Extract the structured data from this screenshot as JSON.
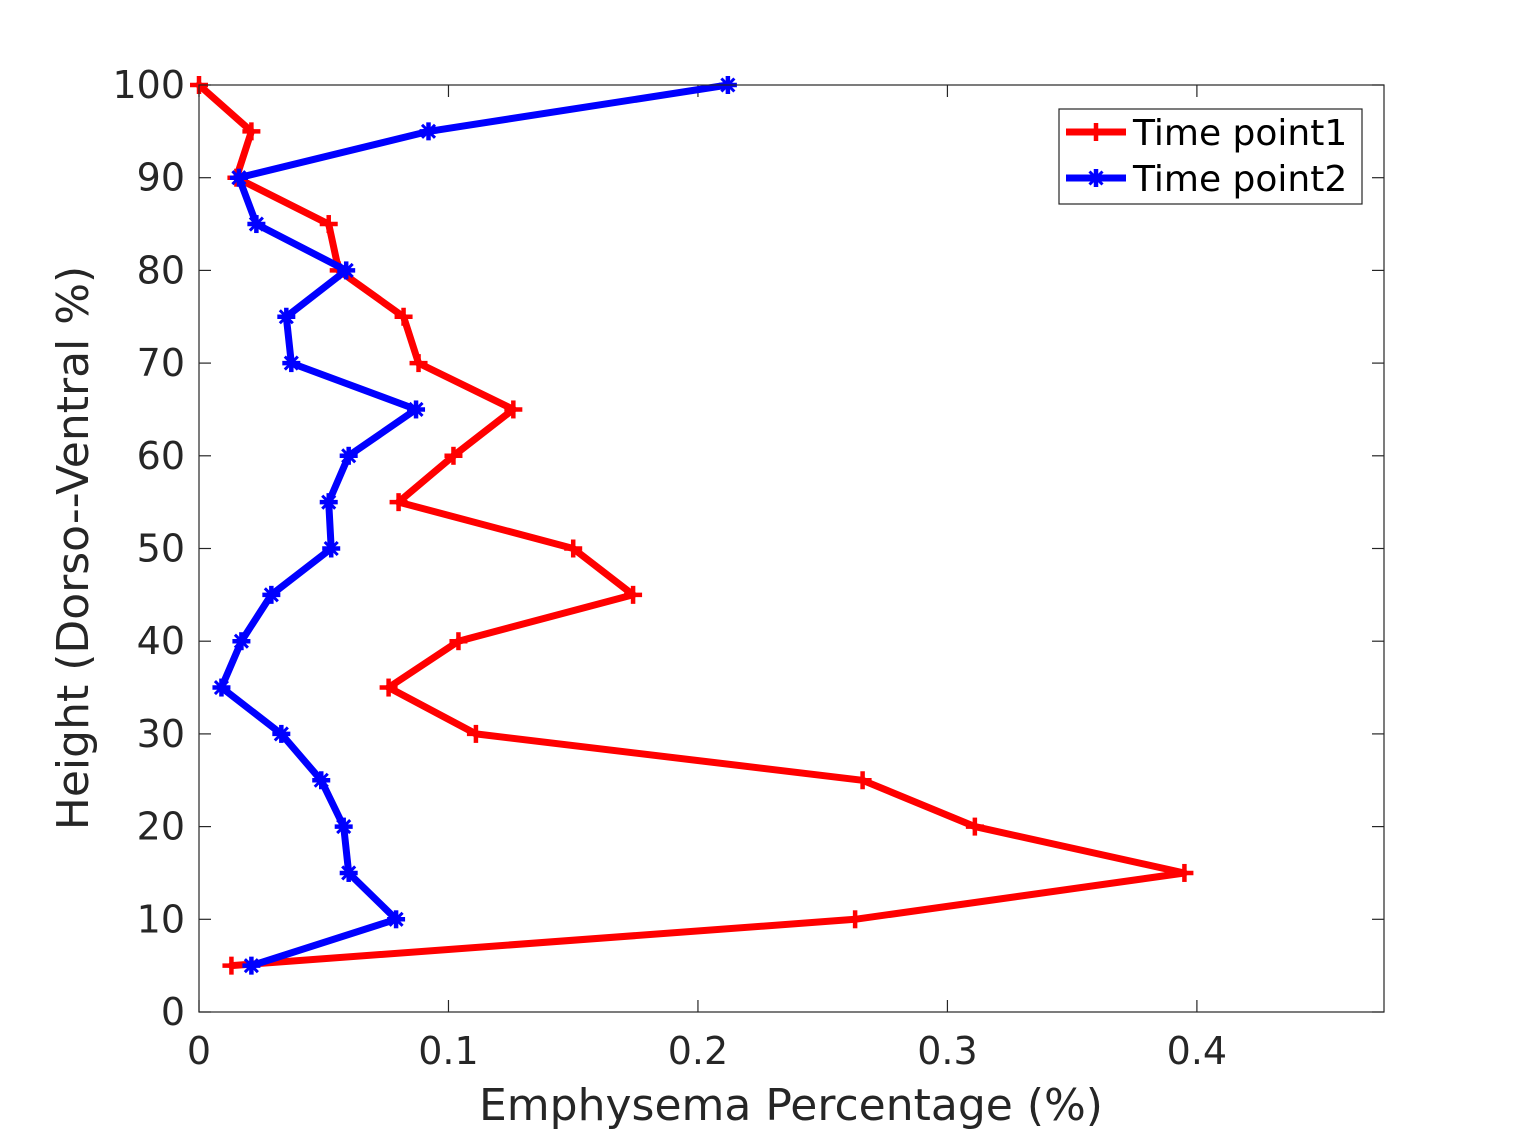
{
  "chart_data": {
    "type": "line",
    "xlabel": "Emphysema Percentage (%)",
    "ylabel": "Height (Dorso--Ventral %)",
    "xlim": [
      0,
      0.475
    ],
    "ylim": [
      0,
      100
    ],
    "x_ticks": [
      0,
      0.1,
      0.2,
      0.3,
      0.4
    ],
    "x_tick_labels": [
      "0",
      "0.1",
      "0.2",
      "0.3",
      "0.4"
    ],
    "y_ticks": [
      0,
      10,
      20,
      30,
      40,
      50,
      60,
      70,
      80,
      90,
      100
    ],
    "y_tick_labels": [
      "0",
      "10",
      "20",
      "30",
      "40",
      "50",
      "60",
      "70",
      "80",
      "90",
      "100"
    ],
    "grid": false,
    "legend_position": "top-right",
    "series": [
      {
        "name": "Time point1",
        "color": "#ff0000",
        "marker": "plus",
        "points": [
          {
            "x": 0.013,
            "y": 5
          },
          {
            "x": 0.263,
            "y": 10
          },
          {
            "x": 0.395,
            "y": 15
          },
          {
            "x": 0.311,
            "y": 20
          },
          {
            "x": 0.266,
            "y": 25
          },
          {
            "x": 0.111,
            "y": 30
          },
          {
            "x": 0.076,
            "y": 35
          },
          {
            "x": 0.104,
            "y": 40
          },
          {
            "x": 0.174,
            "y": 45
          },
          {
            "x": 0.15,
            "y": 50
          },
          {
            "x": 0.08,
            "y": 55
          },
          {
            "x": 0.102,
            "y": 60
          },
          {
            "x": 0.126,
            "y": 65
          },
          {
            "x": 0.088,
            "y": 70
          },
          {
            "x": 0.082,
            "y": 75
          },
          {
            "x": 0.056,
            "y": 80
          },
          {
            "x": 0.052,
            "y": 85
          },
          {
            "x": 0.015,
            "y": 90
          },
          {
            "x": 0.021,
            "y": 95
          },
          {
            "x": 0.0,
            "y": 100
          }
        ]
      },
      {
        "name": "Time point2",
        "color": "#0000ff",
        "marker": "star",
        "points": [
          {
            "x": 0.021,
            "y": 5
          },
          {
            "x": 0.079,
            "y": 10
          },
          {
            "x": 0.06,
            "y": 15
          },
          {
            "x": 0.058,
            "y": 20
          },
          {
            "x": 0.049,
            "y": 25
          },
          {
            "x": 0.033,
            "y": 30
          },
          {
            "x": 0.009,
            "y": 35
          },
          {
            "x": 0.017,
            "y": 40
          },
          {
            "x": 0.029,
            "y": 45
          },
          {
            "x": 0.053,
            "y": 50
          },
          {
            "x": 0.052,
            "y": 55
          },
          {
            "x": 0.06,
            "y": 60
          },
          {
            "x": 0.087,
            "y": 65
          },
          {
            "x": 0.037,
            "y": 70
          },
          {
            "x": 0.035,
            "y": 75
          },
          {
            "x": 0.059,
            "y": 80
          },
          {
            "x": 0.023,
            "y": 85
          },
          {
            "x": 0.016,
            "y": 90
          },
          {
            "x": 0.092,
            "y": 95
          },
          {
            "x": 0.212,
            "y": 100
          }
        ]
      }
    ]
  }
}
